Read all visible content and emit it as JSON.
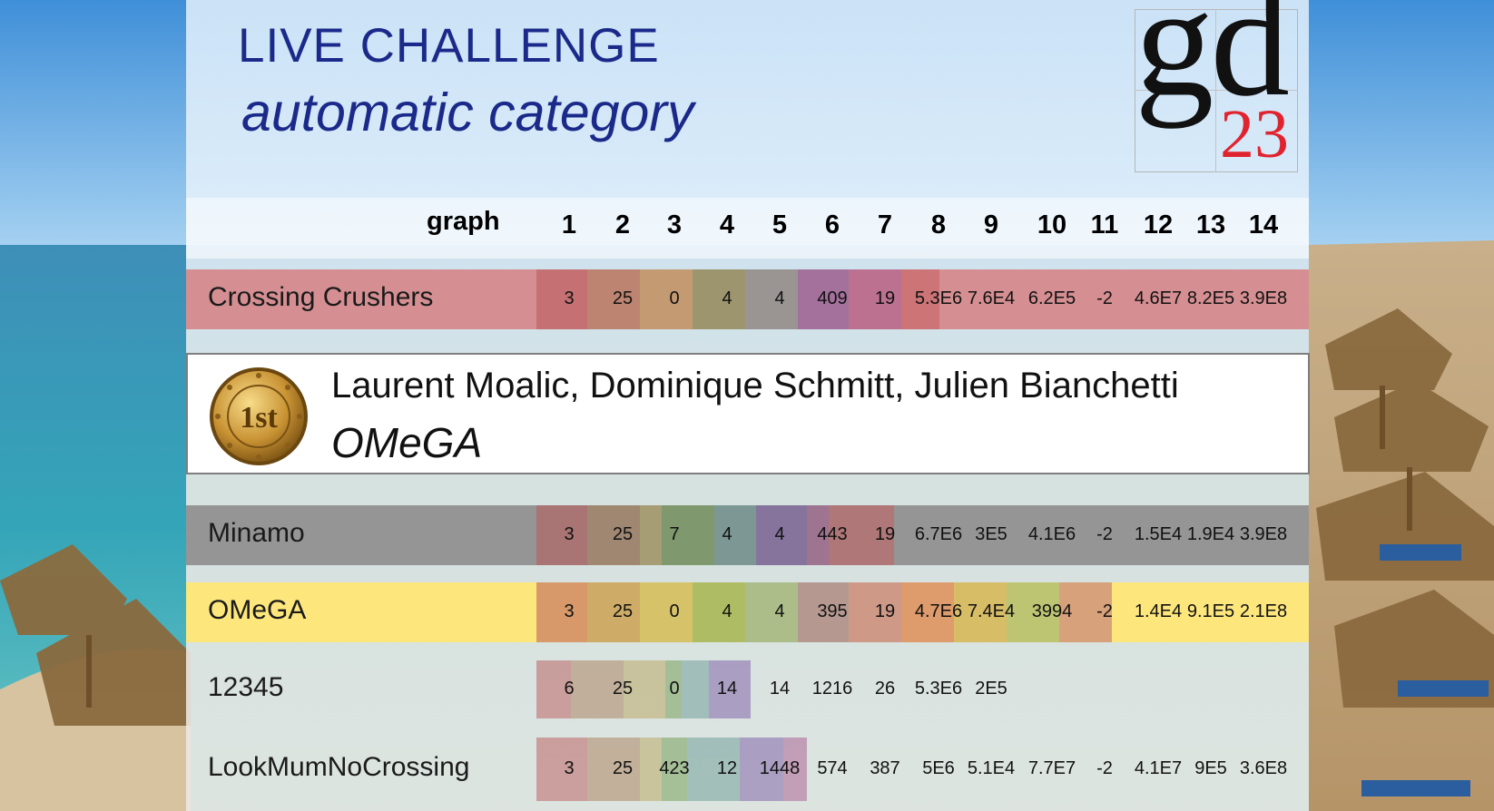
{
  "slide": {
    "title": "LIVE CHALLENGE",
    "subtitle": "automatic category",
    "logo": {
      "letters": "gd",
      "number": "23",
      "number_color": "#e0242f"
    },
    "accent_color": "#1b2a8a"
  },
  "table": {
    "column_label": "graph",
    "columns": [
      "1",
      "2",
      "3",
      "4",
      "5",
      "6",
      "7",
      "8",
      "9",
      "10",
      "11",
      "12",
      "13",
      "14"
    ],
    "rows": [
      {
        "team": "Crossing Crushers",
        "band_color": "#d58f92",
        "values": [
          "3",
          "25",
          "0",
          "4",
          "4",
          "409",
          "19",
          "5.3E6",
          "7.6E4",
          "6.2E5",
          "-2",
          "4.6E7",
          "8.2E5",
          "3.9E8"
        ]
      },
      {
        "team": "Minamo",
        "band_color": "#959595",
        "values": [
          "3",
          "25",
          "7",
          "4",
          "4",
          "443",
          "19",
          "6.7E6",
          "3E5",
          "4.1E6",
          "-2",
          "1.5E4",
          "1.9E4",
          "3.9E8"
        ]
      },
      {
        "team": "OMeGA",
        "band_color": "#fde77d",
        "values": [
          "3",
          "25",
          "0",
          "4",
          "4",
          "395",
          "19",
          "4.7E6",
          "7.4E4",
          "3994",
          "-2",
          "1.4E4",
          "9.1E5",
          "2.1E8"
        ]
      },
      {
        "team": "12345",
        "band_color": "",
        "values": [
          "6",
          "25",
          "0",
          "14",
          "14",
          "1216",
          "26",
          "5.3E6",
          "2E5",
          "",
          "",
          "",
          "",
          ""
        ]
      },
      {
        "team": "LookMumNoCrossing",
        "band_color": "",
        "values": [
          "3",
          "25",
          "423",
          "12",
          "1448",
          "574",
          "387",
          "5E6",
          "5.1E4",
          "7.7E7",
          "-2",
          "4.1E7",
          "9E5",
          "3.6E8"
        ]
      }
    ]
  },
  "winner": {
    "medal_text": "1st",
    "authors": "Laurent Moalic, Dominique Schmitt, Julien Bianchetti",
    "team": "OMeGA"
  }
}
